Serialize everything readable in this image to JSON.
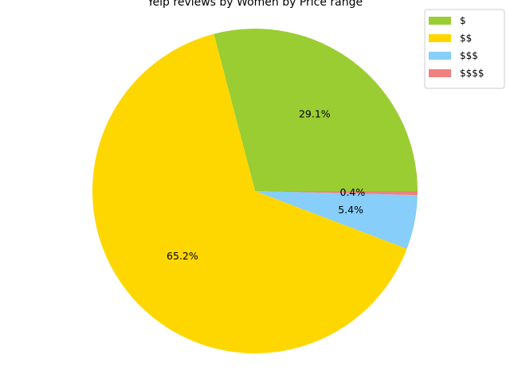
{
  "chart_data": {
    "type": "pie",
    "title": "Yelp reviews by Women by Price range",
    "labels": [
      "$",
      "$$",
      "$$$",
      "$$$$"
    ],
    "values": [
      29.1,
      65.2,
      5.4,
      0.4
    ],
    "value_labels": [
      "29.1%",
      "65.2%",
      "5.4%",
      "0.4%"
    ],
    "colors": [
      "#9acd32",
      "#ffd700",
      "#87cefa",
      "#f08080"
    ],
    "legend_position": "top-right",
    "start_angle_deg": 0,
    "direction": "counterclockwise"
  }
}
